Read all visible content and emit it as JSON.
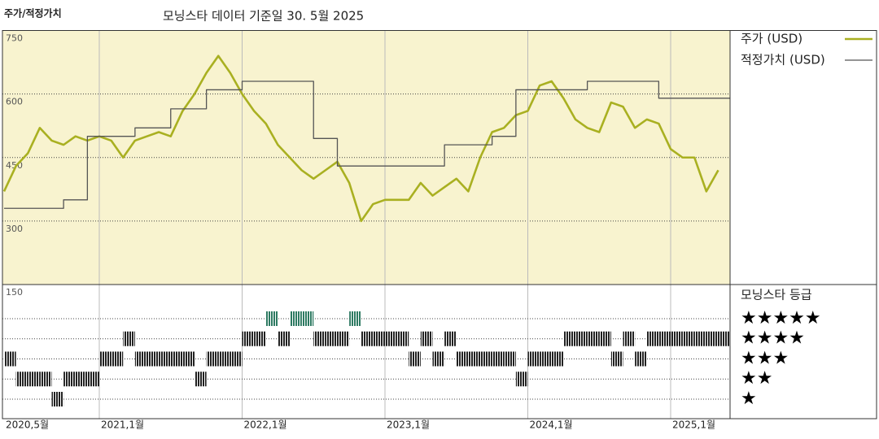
{
  "title": "주가/적정가치",
  "subtitle": "모닝스타 데이터 기준일 30. 5월 2025",
  "chart_data": [
    {
      "type": "line",
      "x": [
        "2020-05",
        "2020-06",
        "2020-07",
        "2020-08",
        "2020-09",
        "2020-10",
        "2020-11",
        "2020-12",
        "2021-01",
        "2021-02",
        "2021-03",
        "2021-04",
        "2021-05",
        "2021-06",
        "2021-07",
        "2021-08",
        "2021-09",
        "2021-10",
        "2021-11",
        "2021-12",
        "2022-01",
        "2022-02",
        "2022-03",
        "2022-04",
        "2022-05",
        "2022-06",
        "2022-07",
        "2022-08",
        "2022-09",
        "2022-10",
        "2022-11",
        "2022-12",
        "2023-01",
        "2023-02",
        "2023-03",
        "2023-04",
        "2023-05",
        "2023-06",
        "2023-07",
        "2023-08",
        "2023-09",
        "2023-10",
        "2023-11",
        "2023-12",
        "2024-01",
        "2024-02",
        "2024-03",
        "2024-04",
        "2024-05",
        "2024-06",
        "2024-07",
        "2024-08",
        "2024-09",
        "2024-10",
        "2024-11",
        "2024-12",
        "2025-01",
        "2025-02",
        "2025-03",
        "2025-04",
        "2025-05"
      ],
      "series": [
        {
          "name": "주가 (USD)",
          "color": "#a9b021",
          "step": false,
          "values": [
            370,
            430,
            460,
            520,
            490,
            480,
            500,
            490,
            500,
            490,
            450,
            490,
            500,
            510,
            500,
            560,
            600,
            650,
            690,
            650,
            600,
            560,
            530,
            480,
            450,
            420,
            400,
            420,
            440,
            390,
            300,
            340,
            350,
            350,
            350,
            390,
            360,
            380,
            400,
            370,
            450,
            510,
            520,
            550,
            560,
            620,
            630,
            590,
            540,
            520,
            510,
            580,
            570,
            520,
            540,
            530,
            470,
            450,
            450,
            370,
            420
          ]
        },
        {
          "name": "적정가치 (USD)",
          "color": "#555555",
          "step": true,
          "values": [
            330,
            330,
            330,
            330,
            330,
            350,
            350,
            500,
            500,
            500,
            500,
            520,
            520,
            520,
            565,
            565,
            565,
            610,
            610,
            610,
            630,
            630,
            630,
            630,
            630,
            630,
            495,
            495,
            430,
            430,
            430,
            430,
            430,
            430,
            430,
            430,
            430,
            480,
            480,
            480,
            480,
            500,
            500,
            610,
            610,
            610,
            610,
            610,
            610,
            630,
            630,
            630,
            630,
            630,
            630,
            590,
            590,
            590,
            590,
            590,
            590
          ]
        }
      ],
      "ylim": [
        150,
        750
      ],
      "yticks": [
        150,
        300,
        450,
        600,
        750
      ],
      "xticks": [
        {
          "value": "2020-05",
          "label": "2020,5월"
        },
        {
          "value": "2021-01",
          "label": "2021,1월"
        },
        {
          "value": "2022-01",
          "label": "2022,1월"
        },
        {
          "value": "2023-01",
          "label": "2023,1월"
        },
        {
          "value": "2024-01",
          "label": "2024,1월"
        },
        {
          "value": "2025-01",
          "label": "2025,1월"
        }
      ],
      "background": "#f8f3cf",
      "grid": true
    },
    {
      "type": "rating",
      "title": "모닝스타 등급",
      "x": [
        "2020-05",
        "2020-06",
        "2020-07",
        "2020-08",
        "2020-09",
        "2020-10",
        "2020-11",
        "2020-12",
        "2021-01",
        "2021-02",
        "2021-03",
        "2021-04",
        "2021-05",
        "2021-06",
        "2021-07",
        "2021-08",
        "2021-09",
        "2021-10",
        "2021-11",
        "2021-12",
        "2022-01",
        "2022-02",
        "2022-03",
        "2022-04",
        "2022-05",
        "2022-06",
        "2022-07",
        "2022-08",
        "2022-09",
        "2022-10",
        "2022-11",
        "2022-12",
        "2023-01",
        "2023-02",
        "2023-03",
        "2023-04",
        "2023-05",
        "2023-06",
        "2023-07",
        "2023-08",
        "2023-09",
        "2023-10",
        "2023-11",
        "2023-12",
        "2024-01",
        "2024-02",
        "2024-03",
        "2024-04",
        "2024-05",
        "2024-06",
        "2024-07",
        "2024-08",
        "2024-09",
        "2024-10",
        "2024-11",
        "2024-12",
        "2025-01",
        "2025-02",
        "2025-03",
        "2025-04",
        "2025-05"
      ],
      "values": [
        3,
        2,
        2,
        2,
        1,
        2,
        2,
        2,
        3,
        3,
        4,
        3,
        3,
        3,
        3,
        3,
        2,
        3,
        3,
        3,
        4,
        4,
        5,
        4,
        5,
        5,
        4,
        4,
        4,
        5,
        4,
        4,
        4,
        4,
        3,
        4,
        3,
        4,
        3,
        3,
        3,
        3,
        3,
        2,
        3,
        3,
        3,
        4,
        4,
        4,
        4,
        3,
        4,
        3,
        4,
        4,
        4,
        4,
        4,
        4,
        4
      ],
      "ylim": [
        0,
        5.5
      ],
      "yticks": [
        {
          "value": 1,
          "label": "★"
        },
        {
          "value": 2,
          "label": "★★"
        },
        {
          "value": 3,
          "label": "★★★"
        },
        {
          "value": 4,
          "label": "★★★★"
        },
        {
          "value": 5,
          "label": "★★★★★"
        }
      ],
      "color": "#222222",
      "top_color": "#2e7a62"
    }
  ]
}
